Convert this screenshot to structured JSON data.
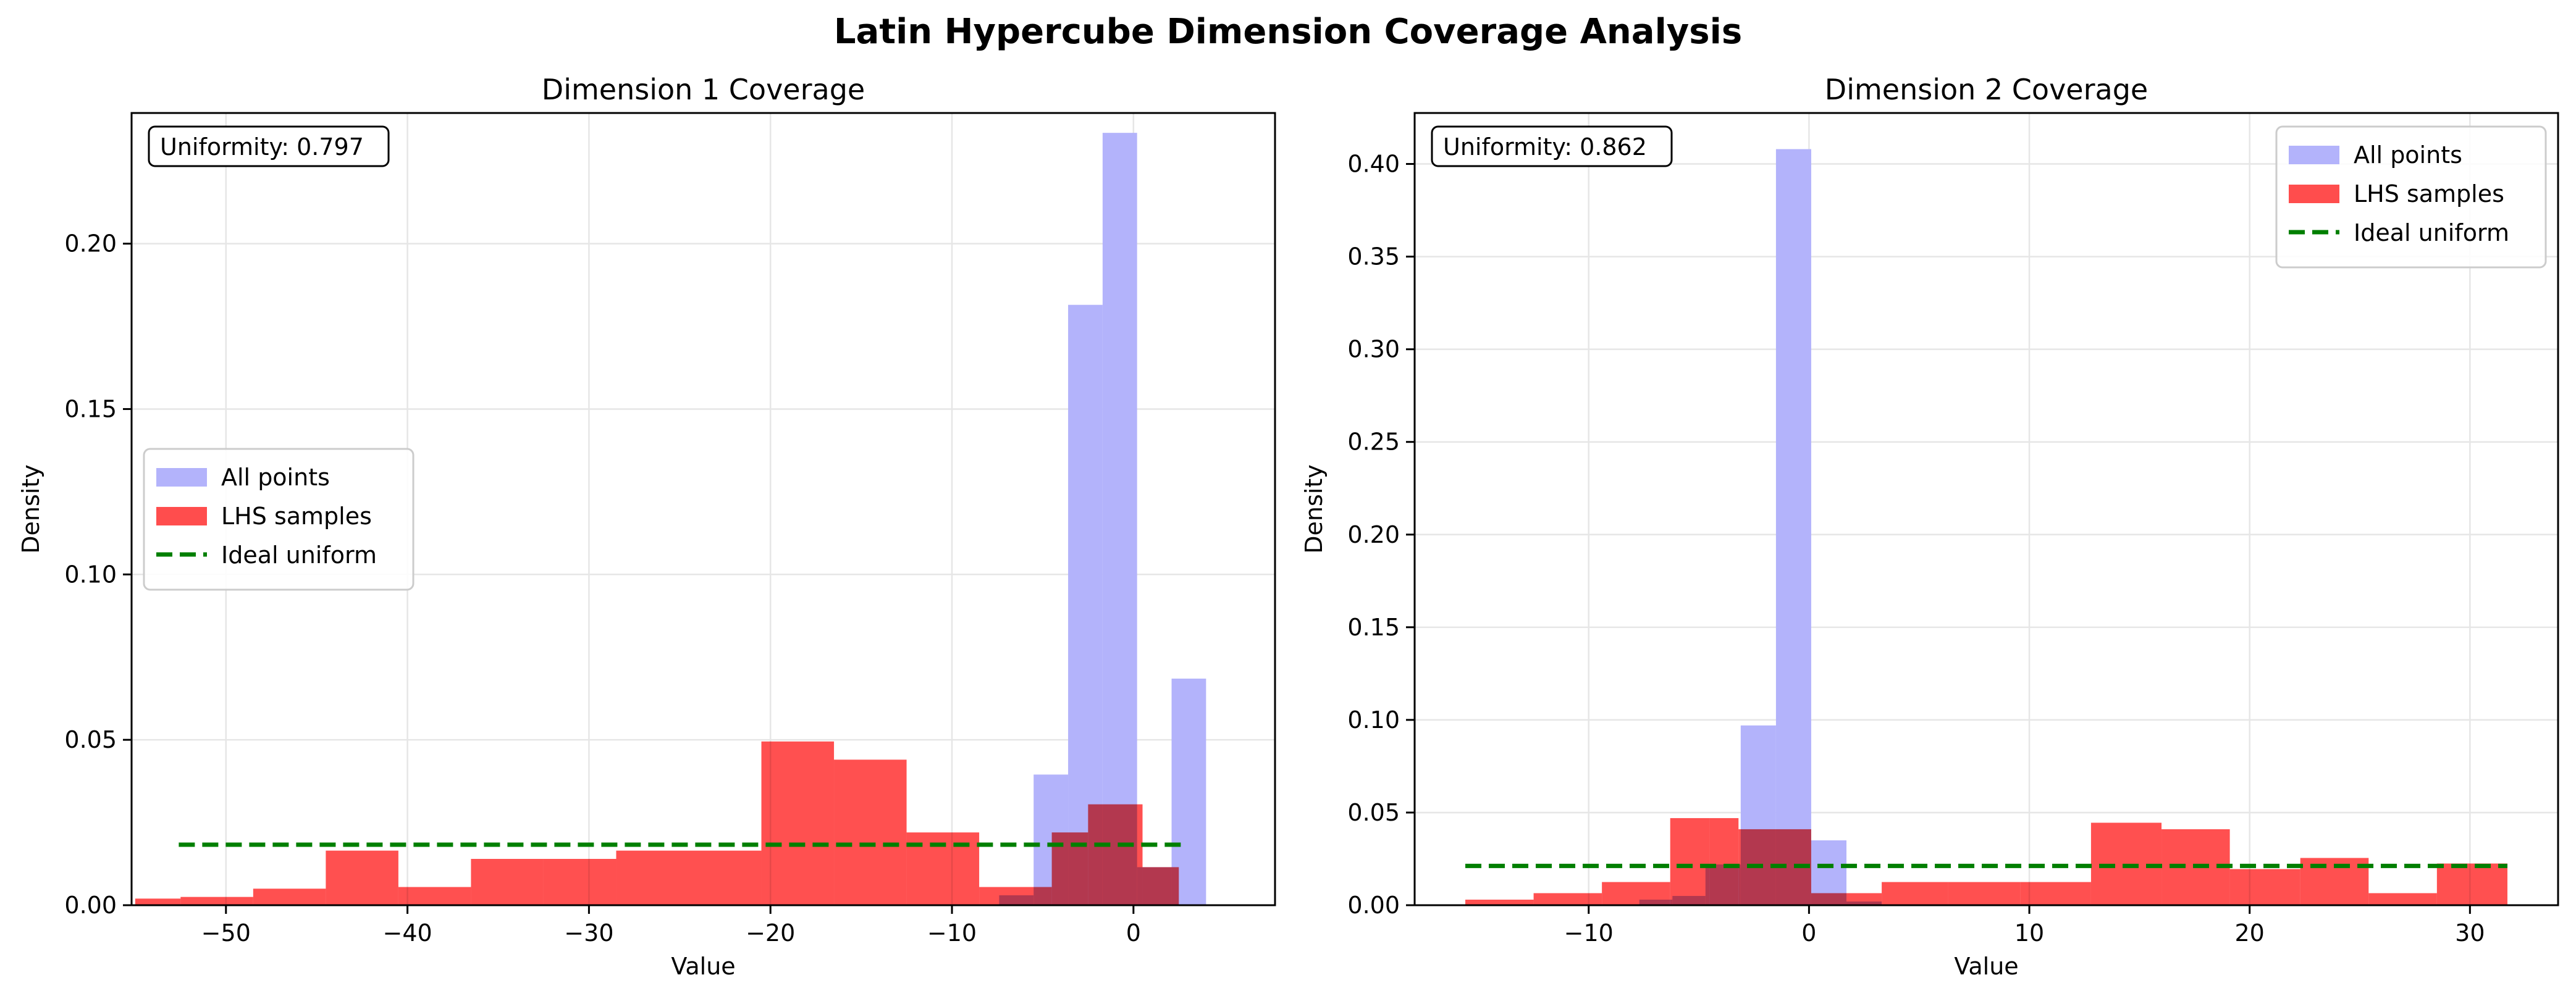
{
  "figure_title": "Latin Hypercube Dimension Coverage Analysis",
  "colors": {
    "all_points": "#b3b3fb",
    "lhs_samples": "#ff4d4d",
    "overlap": "#e03a55",
    "ideal_uniform": "#007f00",
    "grid": "#e6e6e6"
  },
  "chart_data": [
    {
      "type": "bar",
      "title": "Dimension 1 Coverage",
      "xlabel": "Value",
      "ylabel": "Density",
      "xlim": [
        -55.2,
        7.8
      ],
      "ylim": [
        0,
        0.2395
      ],
      "xticks": [
        -50,
        -40,
        -30,
        -20,
        -10,
        0
      ],
      "xtick_labels": [
        "−50",
        "−40",
        "−30",
        "−20",
        "−10",
        "0"
      ],
      "yticks": [
        0,
        0.05,
        0.1,
        0.15,
        0.2
      ],
      "ytick_labels": [
        "0.00",
        "0.05",
        "0.10",
        "0.15",
        "0.20"
      ],
      "grid": true,
      "legend_position": "center-left",
      "annotation": "Uniformity: 0.797",
      "series": [
        {
          "name": "All points",
          "kind": "histogram",
          "bins": [
            [
              -7.4,
              -5.5,
              0.003
            ],
            [
              -5.5,
              -3.6,
              0.0395
            ],
            [
              -3.6,
              -1.7,
              0.1815
            ],
            [
              -1.7,
              0.2,
              0.2335
            ],
            [
              0.2,
              2.1,
              0.0115
            ],
            [
              2.1,
              4.0,
              0.0685
            ]
          ]
        },
        {
          "name": "LHS samples",
          "kind": "histogram",
          "bins": [
            [
              -55.0,
              -52.5,
              0.002
            ],
            [
              -52.5,
              -48.5,
              0.0025
            ],
            [
              -48.5,
              -44.5,
              0.005
            ],
            [
              -44.5,
              -40.5,
              0.0165
            ],
            [
              -40.5,
              -36.5,
              0.0055
            ],
            [
              -36.5,
              -32.5,
              0.014
            ],
            [
              -32.5,
              -28.5,
              0.014
            ],
            [
              -28.5,
              -24.5,
              0.0165
            ],
            [
              -24.5,
              -20.5,
              0.0165
            ],
            [
              -20.5,
              -16.5,
              0.0495
            ],
            [
              -16.5,
              -12.5,
              0.044
            ],
            [
              -12.5,
              -8.5,
              0.022
            ],
            [
              -8.5,
              -4.5,
              0.0055
            ],
            [
              -4.5,
              -2.5,
              0.022
            ],
            [
              -2.5,
              0.5,
              0.0305
            ],
            [
              0.5,
              2.5,
              0.0115
            ]
          ]
        },
        {
          "name": "Ideal uniform",
          "kind": "hline",
          "value": 0.0183,
          "x_range": [
            -52.6,
            2.9
          ]
        }
      ]
    },
    {
      "type": "bar",
      "title": "Dimension 2 Coverage",
      "xlabel": "Value",
      "ylabel": "Density",
      "xlim": [
        -17.9,
        34.0
      ],
      "ylim": [
        0,
        0.4275
      ],
      "xticks": [
        -10,
        0,
        10,
        20,
        30
      ],
      "xtick_labels": [
        "−10",
        "0",
        "10",
        "20",
        "30"
      ],
      "yticks": [
        0,
        0.05,
        0.1,
        0.15,
        0.2,
        0.25,
        0.3,
        0.35,
        0.4
      ],
      "ytick_labels": [
        "0.00",
        "0.05",
        "0.10",
        "0.15",
        "0.20",
        "0.25",
        "0.30",
        "0.35",
        "0.40"
      ],
      "grid": true,
      "legend_position": "top-right",
      "annotation": "Uniformity: 0.862",
      "series": [
        {
          "name": "All points",
          "kind": "histogram",
          "bins": [
            [
              -7.7,
              -6.2,
              0.003
            ],
            [
              -6.2,
              -4.7,
              0.005
            ],
            [
              -4.7,
              -3.1,
              0.022
            ],
            [
              -3.1,
              -1.5,
              0.097
            ],
            [
              -1.5,
              0.1,
              0.408
            ],
            [
              0.1,
              1.7,
              0.035
            ],
            [
              1.7,
              3.3,
              0.002
            ]
          ]
        },
        {
          "name": "LHS samples",
          "kind": "histogram",
          "bins": [
            [
              -15.6,
              -12.5,
              0.003
            ],
            [
              -12.5,
              -9.4,
              0.0065
            ],
            [
              -9.4,
              -6.3,
              0.0125
            ],
            [
              -6.3,
              -4.5,
              0.047
            ],
            [
              -4.5,
              -3.2,
              0.047
            ],
            [
              -3.2,
              0.1,
              0.041
            ],
            [
              0.1,
              3.3,
              0.0065
            ],
            [
              3.3,
              6.3,
              0.0125
            ],
            [
              6.3,
              9.6,
              0.0125
            ],
            [
              9.6,
              12.8,
              0.0125
            ],
            [
              12.8,
              16.0,
              0.0445
            ],
            [
              16.0,
              19.1,
              0.041
            ],
            [
              19.1,
              22.3,
              0.0195
            ],
            [
              22.3,
              25.4,
              0.0255
            ],
            [
              25.4,
              28.5,
              0.0065
            ],
            [
              28.5,
              31.7,
              0.0225
            ]
          ]
        },
        {
          "name": "Ideal uniform",
          "kind": "hline",
          "value": 0.0212,
          "x_range": [
            -15.6,
            31.7
          ]
        }
      ]
    }
  ]
}
